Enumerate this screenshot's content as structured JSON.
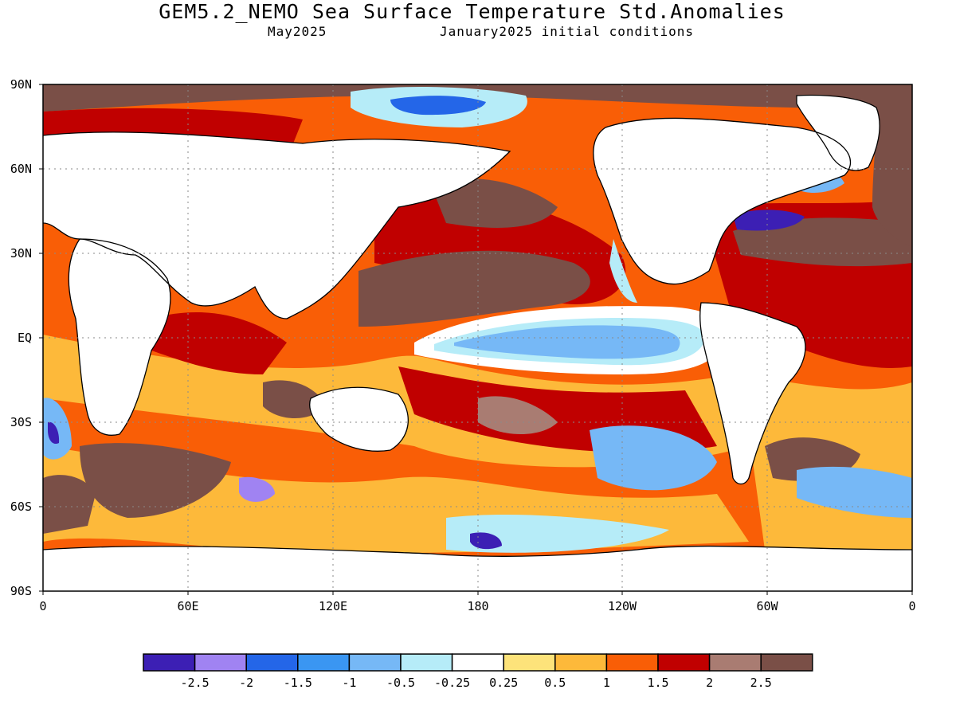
{
  "title": "GEM5.2_NEMO Sea Surface Temperature Std.Anomalies",
  "subtitle_left": "May2025",
  "subtitle_right": "January2025 initial conditions",
  "axes": {
    "lat_labels": [
      "90N",
      "60N",
      "30N",
      "EQ",
      "30S",
      "60S",
      "90S"
    ],
    "lon_labels": [
      "0",
      "60E",
      "120E",
      "180",
      "120W",
      "60W",
      "0"
    ]
  },
  "colorbar": {
    "colors": [
      "#3c1fb4",
      "#a083f2",
      "#2466e8",
      "#3a96f2",
      "#76b8f6",
      "#b6ecf8",
      "#ffffff",
      "#fde37a",
      "#fdb93a",
      "#f95e06",
      "#c00000",
      "#a97c72",
      "#7a4f47"
    ],
    "tick_labels": [
      "-2.5",
      "-2",
      "-1.5",
      "-1",
      "-0.5",
      "-0.25",
      "0.25",
      "0.5",
      "1",
      "1.5",
      "2",
      "2.5"
    ]
  },
  "map_colors": {
    "land": "#ffffff",
    "coast": "#000000",
    "grid": "#8a8a8a"
  }
}
